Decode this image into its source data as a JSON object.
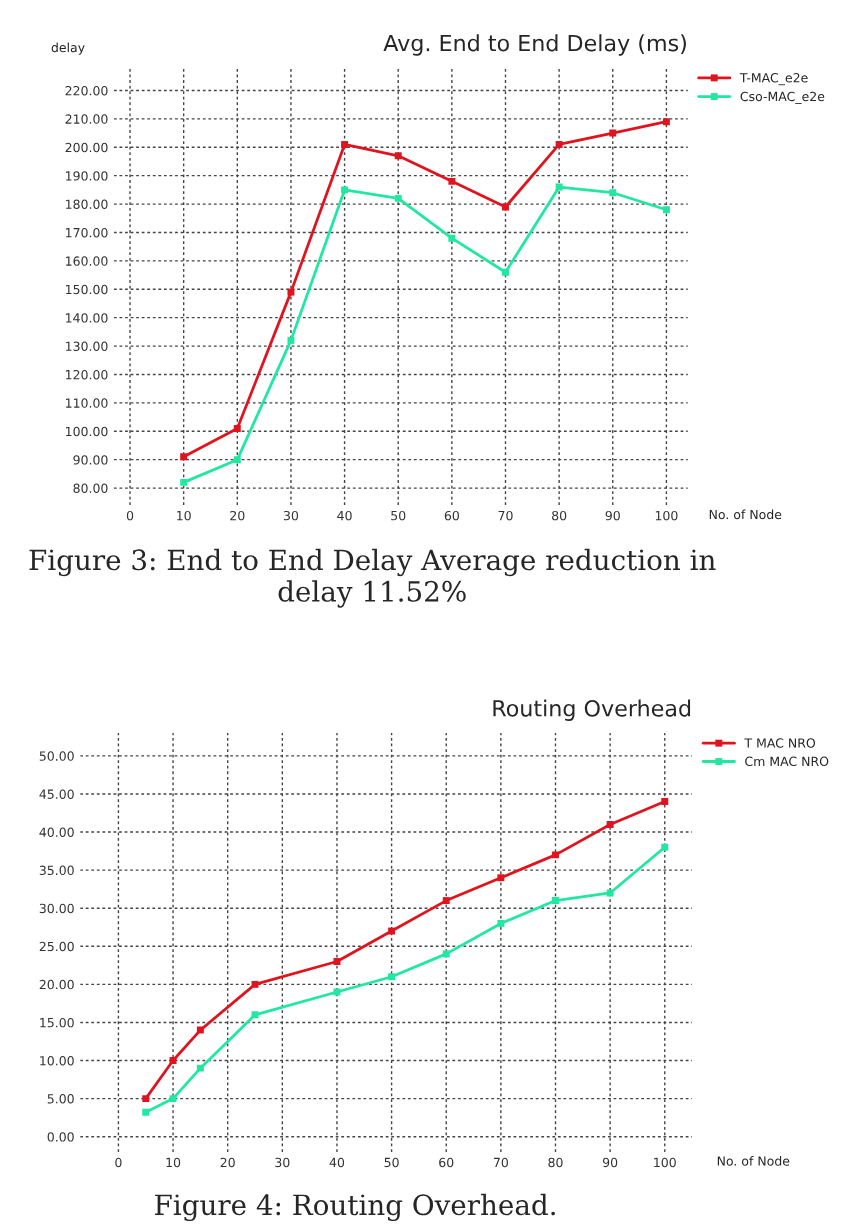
{
  "chart_data": [
    {
      "type": "line",
      "title": "Avg. End to End Delay (ms)",
      "ylabel": "delay",
      "xlabel": "No. of Node",
      "x": [
        10,
        20,
        30,
        40,
        50,
        60,
        70,
        80,
        90,
        100
      ],
      "series": [
        {
          "name": "T-MAC_e2e",
          "color": "#e0141e",
          "values": [
            91,
            101,
            149,
            201,
            197,
            188,
            179,
            201,
            205,
            209
          ]
        },
        {
          "name": "Cso-MAC_e2e",
          "color": "#20e8a0",
          "values": [
            82,
            90,
            132,
            185,
            182,
            168,
            156,
            186,
            184,
            178
          ]
        }
      ],
      "xlim": [
        -3,
        104
      ],
      "ylim": [
        74,
        228
      ],
      "xticks": [
        0,
        10,
        20,
        30,
        40,
        50,
        60,
        70,
        80,
        90,
        100
      ],
      "yticks": [
        {
          "value": 80,
          "label": "80.00"
        },
        {
          "value": 90,
          "label": "90.00"
        },
        {
          "value": 100,
          "label": "100.00"
        },
        {
          "value": 110,
          "label": "110.00"
        },
        {
          "value": 120,
          "label": "120.00"
        },
        {
          "value": 130,
          "label": "130.00"
        },
        {
          "value": 140,
          "label": "140.00"
        },
        {
          "value": 150,
          "label": "150.00"
        },
        {
          "value": 160,
          "label": "160.00"
        },
        {
          "value": 170,
          "label": "170.00"
        },
        {
          "value": 180,
          "label": "180.00"
        },
        {
          "value": 190,
          "label": "190.00"
        },
        {
          "value": 200,
          "label": "200.00"
        },
        {
          "value": 210,
          "label": "210.00"
        },
        {
          "value": 220,
          "label": "220.00"
        }
      ],
      "grid": true,
      "legend": "top right",
      "marker": "square",
      "line_style": "solid",
      "annotations": [
        "Figure 3: End to End Delay Average reduction in delay 11.52%"
      ]
    },
    {
      "type": "line",
      "title": "Routing Overhead",
      "xlabel": "No. of Node",
      "x": [
        5,
        10,
        15,
        25,
        40,
        50,
        60,
        70,
        80,
        90,
        100
      ],
      "series": [
        {
          "name": "T MAC NRO",
          "color": "#e0141e",
          "values": [
            5,
            10,
            14,
            20,
            23,
            27,
            31,
            34,
            37,
            41,
            44
          ]
        },
        {
          "name": "Cm MAC NRO",
          "color": "#20e8a0",
          "values": [
            3.2,
            5,
            9,
            16,
            19,
            21,
            24,
            28,
            31,
            32,
            38
          ]
        }
      ],
      "xlim": [
        -7,
        105
      ],
      "ylim": [
        -2,
        53
      ],
      "xticks": [
        0,
        10,
        20,
        30,
        40,
        50,
        60,
        70,
        80,
        90,
        100
      ],
      "yticks": [
        {
          "value": 0,
          "label": "0.00"
        },
        {
          "value": 5,
          "label": "5.00"
        },
        {
          "value": 10,
          "label": "10.00"
        },
        {
          "value": 15,
          "label": "15.00"
        },
        {
          "value": 20,
          "label": "20.00"
        },
        {
          "value": 25,
          "label": "25.00"
        },
        {
          "value": 30,
          "label": "30.00"
        },
        {
          "value": 35,
          "label": "35.00"
        },
        {
          "value": 40,
          "label": "40.00"
        },
        {
          "value": 45,
          "label": "45.00"
        },
        {
          "value": 50,
          "label": "50.00"
        }
      ],
      "grid": true,
      "legend": "top right",
      "marker": "square",
      "line_style": "solid",
      "annotations": [
        "Figure 4: Routing Overhead."
      ]
    }
  ]
}
